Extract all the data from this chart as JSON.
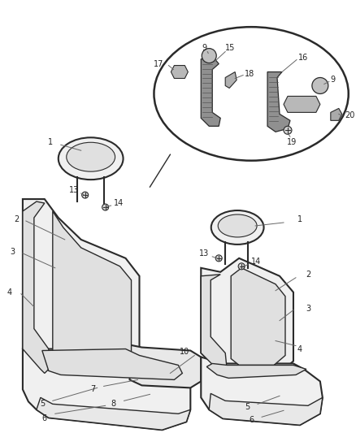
{
  "bg_color": "#ffffff",
  "fig_width": 4.38,
  "fig_height": 5.33,
  "dpi": 100,
  "line_color": "#2a2a2a",
  "seat_fill": "#f0f0f0",
  "seat_fill2": "#e0e0e0",
  "ellipse_fill": "#ffffff",
  "ellipse_stroke": "#2a2a2a",
  "label_fs": 7.0,
  "label_color": "#222222"
}
